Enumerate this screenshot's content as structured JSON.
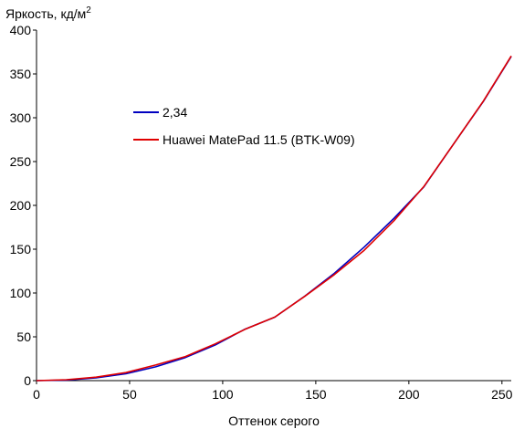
{
  "chart_data": {
    "type": "line",
    "title": "",
    "ylabel": "Яркость, кд/м",
    "ylabel_sup": "2",
    "xlabel": "Оттенок серого",
    "xlim": [
      0,
      255
    ],
    "ylim": [
      0,
      400
    ],
    "x_ticks": [
      0,
      50,
      100,
      150,
      200,
      250
    ],
    "y_ticks": [
      0,
      50,
      100,
      150,
      200,
      250,
      300,
      350,
      400
    ],
    "grid": false,
    "legend": "upper-left inside plot",
    "series": [
      {
        "name": "2,34",
        "color": "#0000c0",
        "x": [
          0,
          16,
          32,
          48,
          64,
          80,
          96,
          112,
          128,
          144,
          160,
          176,
          192,
          208,
          224,
          240,
          255
        ],
        "y": [
          0,
          0.6,
          3.1,
          7.8,
          15.7,
          26.4,
          40.7,
          58.8,
          72.4,
          96.2,
          122.5,
          152.4,
          185.2,
          221.0,
          270.0,
          318.5,
          370.0
        ]
      },
      {
        "name": "Huawei MatePad 11.5 (BTK-W09)",
        "color": "#e00000",
        "x": [
          0,
          16,
          32,
          48,
          64,
          80,
          96,
          112,
          128,
          144,
          160,
          176,
          192,
          208,
          224,
          240,
          255
        ],
        "y": [
          0,
          1.0,
          4.0,
          9.2,
          17.8,
          27.5,
          42.0,
          58.5,
          72.5,
          96.0,
          121.0,
          148.8,
          182.5,
          221.5,
          270.0,
          319.0,
          370.5
        ]
      }
    ]
  }
}
